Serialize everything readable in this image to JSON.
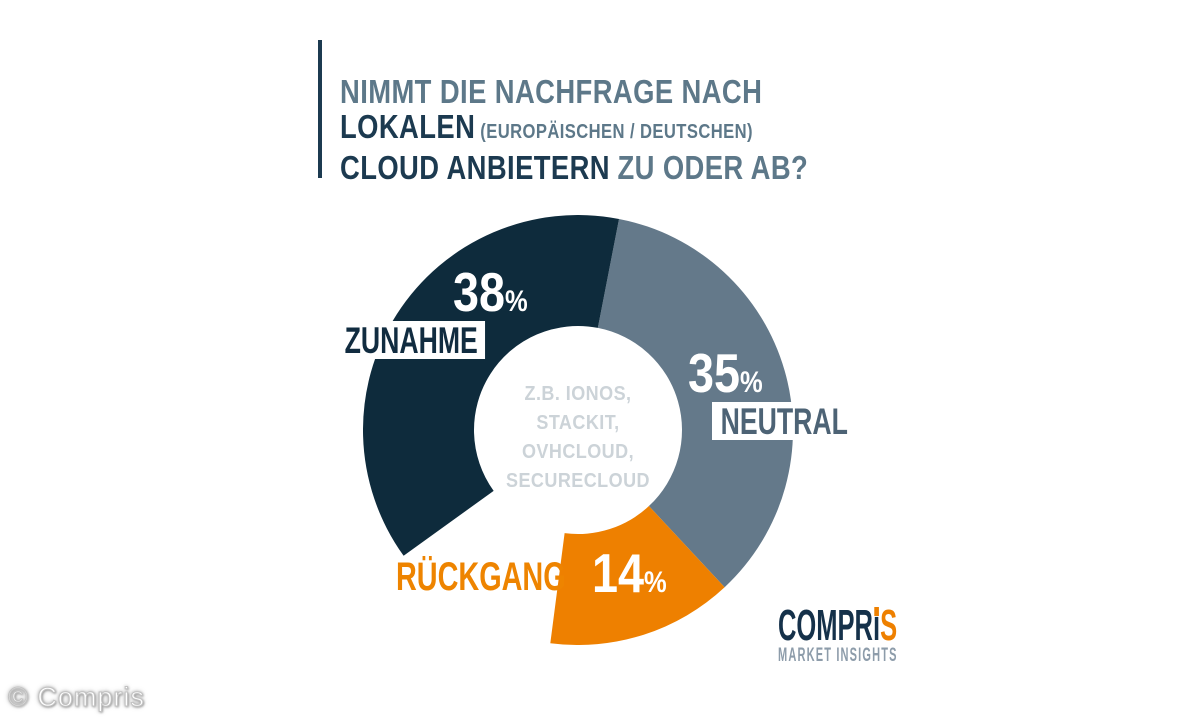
{
  "title": {
    "line1": "NIMMT DIE NACHFRAGE NACH",
    "line2_strong": "LOKALEN",
    "line2_sub": "(EUROPÄISCHEN / DEUTSCHEN)",
    "line3_strong": "CLOUD ANBIETERN",
    "line3_rest": "ZU ODER AB?"
  },
  "chart_data": {
    "type": "donut",
    "title": "Nimmt die Nachfrage nach lokalen (europäischen / deutschen) Cloud Anbietern zu oder ab?",
    "unit": "%",
    "segments": [
      {
        "label": "ZUNAHME",
        "value": 38,
        "color": "#0e2b3c"
      },
      {
        "label": "NEUTRAL",
        "value": 35,
        "color": "#64798a"
      },
      {
        "label": "RÜCKGANG",
        "value": 14,
        "color": "#ee8000"
      },
      {
        "label": "",
        "value": 13,
        "color": "none"
      }
    ],
    "arc_order": [
      "NEUTRAL",
      "RÜCKGANG",
      "",
      "ZUNAHME"
    ],
    "start_angle_deg": 11,
    "outer_radius": 215,
    "inner_radius": 104,
    "center_lines": [
      "Z.B. IONOS,",
      "STACKIT,",
      "OVHCLOUD,",
      "SECURECLOUD"
    ],
    "legend_position": "labels-on-chart",
    "background": "#ffffff"
  },
  "logo": {
    "brand_pre": "COMPR",
    "brand_i": "ı",
    "brand_s": "S",
    "sub": "MARKET INSIGHTS"
  },
  "page": {
    "watermark": "© Compris"
  }
}
